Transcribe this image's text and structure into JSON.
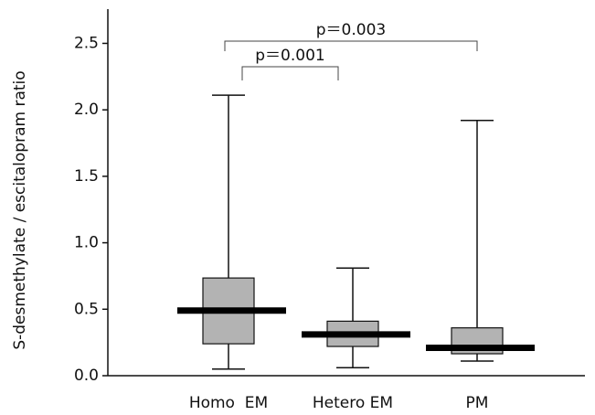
{
  "chart_data": {
    "type": "box",
    "ylabel": "S-desmethylate / escitalopram ratio",
    "categories": [
      "Homo  EM",
      "Hetero EM",
      "PM"
    ],
    "min": [
      0.05,
      0.06,
      0.11
    ],
    "q1": [
      0.24,
      0.22,
      0.165
    ],
    "median": [
      0.49,
      0.31,
      0.21
    ],
    "q3": [
      0.735,
      0.41,
      0.36
    ],
    "max": [
      2.11,
      0.81,
      1.92
    ],
    "color": "#b3b3b3",
    "ylim": [
      0,
      2.62
    ],
    "yticks": [
      {
        "value": 0,
        "label": "0.0"
      },
      0.5,
      {
        "value": 1,
        "label": "1.0"
      },
      1.5,
      {
        "value": 2,
        "label": "2.0"
      },
      2.5
    ],
    "annotations": [
      "p＝0.001",
      "p＝0.003"
    ]
  }
}
